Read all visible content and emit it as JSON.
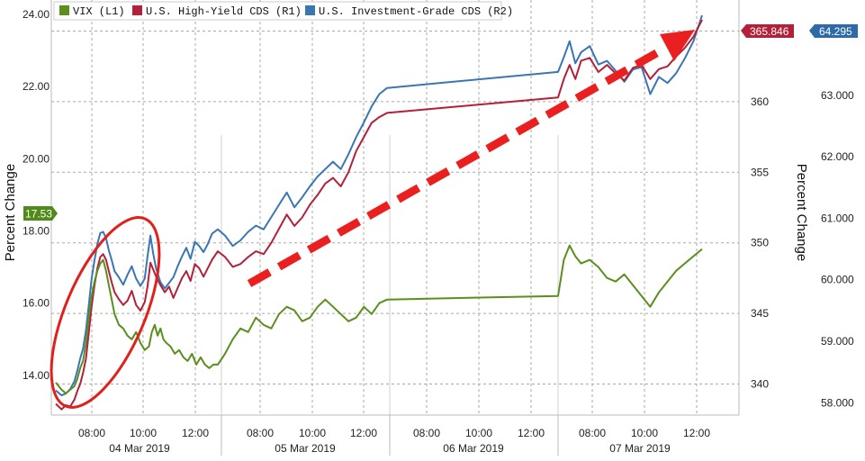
{
  "chart_data": {
    "type": "line",
    "legend": {
      "placement": "top-left",
      "entries": [
        {
          "label": "VIX (L1)",
          "color": "#5a8f1e"
        },
        {
          "label": "U.S. High-Yield CDS (R1)",
          "color": "#b3203a"
        },
        {
          "label": "U.S. Investment-Grade CDS (R2)",
          "color": "#3a75b4"
        }
      ]
    },
    "axes": {
      "left": {
        "label": "Percent Change",
        "range": [
          12.9,
          24.4
        ],
        "ticks": [
          "24.00",
          "22.00",
          "20.00",
          "18.00",
          "16.00",
          "14.00"
        ]
      },
      "right1": {
        "range": [
          337.8,
          367.2
        ],
        "ticks": [
          "365",
          "360",
          "355",
          "350",
          "345",
          "340"
        ]
      },
      "right2": {
        "label": "Percent Change",
        "range": [
          57.8,
          64.55
        ],
        "ticks": [
          "64.000",
          "63.000",
          "62.000",
          "61.000",
          "60.000",
          "59.000",
          "58.000"
        ]
      }
    },
    "x_axis": {
      "days": [
        "04 Mar 2019",
        "05 Mar 2019",
        "06 Mar 2019",
        "07 Mar 2019"
      ],
      "time_ticks": [
        "08:00",
        "10:00",
        "12:00",
        "08:00",
        "10:00",
        "12:00",
        "08:00",
        "10:00",
        "12:00",
        "08:00",
        "10:00",
        "12:00"
      ]
    },
    "last_values": {
      "vix": "17.53",
      "hy_cds": "365.846",
      "ig_cds": "64.295"
    },
    "series": [
      {
        "name": "VIX (L1)",
        "axis": "left",
        "color": "#5a8f1e",
        "points": [
          [
            0,
            13.8
          ],
          [
            4,
            13.6
          ],
          [
            7,
            13.5
          ],
          [
            10,
            13.6
          ],
          [
            13,
            13.7
          ],
          [
            15,
            13.9
          ],
          [
            17,
            14.2
          ],
          [
            19,
            14.4
          ],
          [
            21,
            14.9
          ],
          [
            23,
            15.6
          ],
          [
            25,
            16.2
          ],
          [
            27,
            16.6
          ],
          [
            29,
            16.9
          ],
          [
            31,
            17.1
          ],
          [
            33,
            17.2
          ],
          [
            35,
            16.9
          ],
          [
            37,
            16.5
          ],
          [
            39,
            16.1
          ],
          [
            41,
            15.7
          ],
          [
            44,
            15.4
          ],
          [
            47,
            15.3
          ],
          [
            50,
            15.1
          ],
          [
            53,
            15.0
          ],
          [
            56,
            15.2
          ],
          [
            59,
            14.9
          ],
          [
            62,
            14.7
          ],
          [
            65,
            14.8
          ],
          [
            67,
            15.2
          ],
          [
            69,
            15.4
          ],
          [
            71,
            15.1
          ],
          [
            73,
            15.3
          ],
          [
            75,
            15.0
          ],
          [
            77,
            14.9
          ],
          [
            80,
            14.8
          ],
          [
            83,
            14.6
          ],
          [
            86,
            14.7
          ],
          [
            89,
            14.5
          ],
          [
            92,
            14.4
          ],
          [
            95,
            14.6
          ],
          [
            98,
            14.3
          ],
          [
            101,
            14.5
          ],
          [
            104,
            14.3
          ],
          [
            107,
            14.2
          ],
          [
            110,
            14.3
          ],
          [
            113,
            14.3
          ],
          [
            114,
            14.6
          ],
          [
            117,
            15.0
          ],
          [
            120,
            15.3
          ],
          [
            123,
            15.2
          ],
          [
            126,
            15.6
          ],
          [
            129,
            15.4
          ],
          [
            132,
            15.3
          ],
          [
            135,
            15.7
          ],
          [
            138,
            15.9
          ],
          [
            141,
            15.8
          ],
          [
            144,
            15.5
          ],
          [
            147,
            15.6
          ],
          [
            150,
            15.9
          ],
          [
            153,
            16.1
          ],
          [
            156,
            15.9
          ],
          [
            159,
            15.7
          ],
          [
            162,
            15.5
          ],
          [
            165,
            15.6
          ],
          [
            168,
            15.9
          ],
          [
            171,
            15.7
          ],
          [
            174,
            16.0
          ],
          [
            177,
            16.1
          ],
          [
            178,
            16.2
          ],
          [
            180,
            17.2
          ],
          [
            182,
            17.6
          ],
          [
            184,
            17.3
          ],
          [
            186,
            17.1
          ],
          [
            189,
            17.2
          ],
          [
            192,
            17.0
          ],
          [
            195,
            16.7
          ],
          [
            198,
            16.6
          ],
          [
            201,
            16.8
          ],
          [
            204,
            16.5
          ],
          [
            207,
            16.2
          ],
          [
            210,
            15.9
          ],
          [
            213,
            16.3
          ],
          [
            216,
            16.6
          ],
          [
            219,
            16.9
          ],
          [
            222,
            17.1
          ],
          [
            225,
            17.3
          ],
          [
            228,
            17.5
          ]
        ]
      },
      {
        "name": "U.S. High-Yield CDS (R1)",
        "axis": "right1",
        "color": "#b3203a",
        "points": [
          [
            0,
            338.6
          ],
          [
            4,
            338.2
          ],
          [
            7,
            338.5
          ],
          [
            10,
            338.4
          ],
          [
            13,
            338.9
          ],
          [
            15,
            339.5
          ],
          [
            17,
            340.0
          ],
          [
            19,
            340.8
          ],
          [
            21,
            341.8
          ],
          [
            23,
            343.6
          ],
          [
            25,
            345.5
          ],
          [
            27,
            347.0
          ],
          [
            29,
            348.2
          ],
          [
            31,
            349.0
          ],
          [
            33,
            349.2
          ],
          [
            35,
            348.8
          ],
          [
            37,
            348.0
          ],
          [
            39,
            347.2
          ],
          [
            41,
            346.5
          ],
          [
            44,
            346.0
          ],
          [
            47,
            345.6
          ],
          [
            50,
            345.9
          ],
          [
            53,
            346.6
          ],
          [
            56,
            345.6
          ],
          [
            59,
            345.2
          ],
          [
            62,
            345.8
          ],
          [
            64,
            346.9
          ],
          [
            66,
            348.6
          ],
          [
            68,
            348.1
          ],
          [
            70,
            347.6
          ],
          [
            73,
            347.0
          ],
          [
            76,
            346.5
          ],
          [
            79,
            346.9
          ],
          [
            82,
            346.1
          ],
          [
            85,
            346.8
          ],
          [
            88,
            347.5
          ],
          [
            91,
            348.0
          ],
          [
            94,
            347.3
          ],
          [
            97,
            348.5
          ],
          [
            100,
            348.2
          ],
          [
            103,
            347.6
          ],
          [
            106,
            348.2
          ],
          [
            109,
            348.8
          ],
          [
            113,
            349.4
          ],
          [
            114,
            349.0
          ],
          [
            117,
            348.3
          ],
          [
            120,
            348.5
          ],
          [
            123,
            349.0
          ],
          [
            126,
            349.4
          ],
          [
            129,
            349.2
          ],
          [
            132,
            350.0
          ],
          [
            135,
            351.0
          ],
          [
            138,
            352.0
          ],
          [
            141,
            351.2
          ],
          [
            144,
            351.8
          ],
          [
            147,
            352.7
          ],
          [
            150,
            353.4
          ],
          [
            153,
            354.2
          ],
          [
            156,
            354.6
          ],
          [
            159,
            354.0
          ],
          [
            162,
            355.0
          ],
          [
            165,
            356.5
          ],
          [
            168,
            357.5
          ],
          [
            171,
            358.5
          ],
          [
            174,
            358.9
          ],
          [
            177,
            359.2
          ],
          [
            178,
            360.3
          ],
          [
            180,
            361.6
          ],
          [
            182,
            362.6
          ],
          [
            184,
            361.6
          ],
          [
            186,
            362.9
          ],
          [
            189,
            363.1
          ],
          [
            192,
            362.1
          ],
          [
            195,
            362.6
          ],
          [
            198,
            362.0
          ],
          [
            201,
            361.5
          ],
          [
            204,
            362.4
          ],
          [
            207,
            362.6
          ],
          [
            210,
            361.6
          ],
          [
            213,
            362.3
          ],
          [
            216,
            362.5
          ],
          [
            219,
            363.2
          ],
          [
            222,
            363.8
          ],
          [
            225,
            364.6
          ],
          [
            228,
            365.8
          ]
        ]
      },
      {
        "name": "U.S. Investment-Grade CDS (R2)",
        "axis": "right2",
        "color": "#3a75b4",
        "points": [
          [
            0,
            58.2
          ],
          [
            4,
            58.12
          ],
          [
            7,
            58.15
          ],
          [
            10,
            58.22
          ],
          [
            13,
            58.35
          ],
          [
            15,
            58.52
          ],
          [
            17,
            58.72
          ],
          [
            19,
            58.88
          ],
          [
            21,
            59.18
          ],
          [
            23,
            59.58
          ],
          [
            25,
            60.02
          ],
          [
            27,
            60.32
          ],
          [
            29,
            60.58
          ],
          [
            31,
            60.76
          ],
          [
            33,
            60.78
          ],
          [
            35,
            60.68
          ],
          [
            37,
            60.48
          ],
          [
            39,
            60.32
          ],
          [
            41,
            60.14
          ],
          [
            44,
            60.04
          ],
          [
            47,
            59.92
          ],
          [
            50,
            60.08
          ],
          [
            53,
            60.22
          ],
          [
            56,
            60.02
          ],
          [
            59,
            59.9
          ],
          [
            62,
            60.02
          ],
          [
            64,
            60.38
          ],
          [
            66,
            60.72
          ],
          [
            68,
            60.42
          ],
          [
            70,
            60.18
          ],
          [
            73,
            59.96
          ],
          [
            76,
            59.86
          ],
          [
            79,
            59.95
          ],
          [
            82,
            60.04
          ],
          [
            85,
            60.22
          ],
          [
            88,
            60.38
          ],
          [
            91,
            60.52
          ],
          [
            94,
            60.34
          ],
          [
            97,
            60.62
          ],
          [
            100,
            60.55
          ],
          [
            103,
            60.45
          ],
          [
            106,
            60.58
          ],
          [
            109,
            60.75
          ],
          [
            113,
            60.82
          ],
          [
            114,
            60.72
          ],
          [
            117,
            60.55
          ],
          [
            120,
            60.64
          ],
          [
            123,
            60.78
          ],
          [
            126,
            60.88
          ],
          [
            129,
            60.82
          ],
          [
            132,
            61.02
          ],
          [
            135,
            61.22
          ],
          [
            138,
            61.42
          ],
          [
            141,
            61.18
          ],
          [
            144,
            61.34
          ],
          [
            147,
            61.52
          ],
          [
            150,
            61.68
          ],
          [
            153,
            61.8
          ],
          [
            156,
            61.92
          ],
          [
            159,
            61.8
          ],
          [
            162,
            62.04
          ],
          [
            165,
            62.32
          ],
          [
            168,
            62.56
          ],
          [
            171,
            62.82
          ],
          [
            174,
            63.02
          ],
          [
            177,
            63.12
          ],
          [
            178,
            63.38
          ],
          [
            180,
            63.62
          ],
          [
            182,
            63.88
          ],
          [
            184,
            63.52
          ],
          [
            186,
            63.7
          ],
          [
            189,
            63.8
          ],
          [
            192,
            63.5
          ],
          [
            195,
            63.56
          ],
          [
            198,
            63.4
          ],
          [
            201,
            63.22
          ],
          [
            204,
            63.42
          ],
          [
            207,
            63.46
          ],
          [
            210,
            63.02
          ],
          [
            213,
            63.3
          ],
          [
            216,
            63.2
          ],
          [
            219,
            63.36
          ],
          [
            222,
            63.6
          ],
          [
            225,
            63.88
          ],
          [
            228,
            64.3
          ]
        ]
      }
    ],
    "annotations": {
      "circle": "ellipse around the early 04 Mar 2019 spike",
      "arrow": "dashed red arrow rising from 05 Mar to 07 Mar"
    }
  }
}
